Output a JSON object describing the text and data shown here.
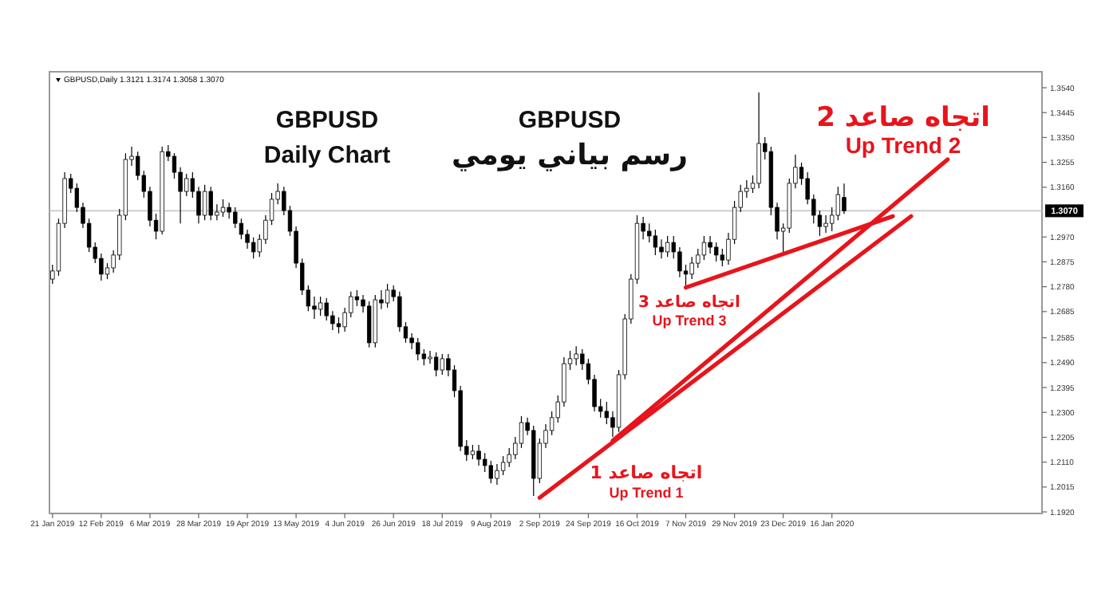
{
  "chart_data": {
    "type": "candlestick",
    "title": "GBPUSD,Daily 1.3121 1.3174 1.3058 1.3070",
    "annotations": [
      "GBPUSD",
      "Daily Chart",
      "GBPUSD",
      "رسم بياني يومي",
      "اتجاه صاعد 1",
      "Up Trend 1",
      {
        "text": "اتجاه صاعد 3",
        "y": 1.2777
      },
      "Up Trend 3",
      "اتجاه صاعد 2",
      "Up Trend 2"
    ],
    "categories": [
      "21 Jan 2019",
      null,
      null,
      null,
      null,
      null,
      null,
      null,
      "12 Feb 2019",
      null,
      null,
      null,
      null,
      null,
      null,
      null,
      "6 Mar 2019",
      null,
      null,
      null,
      null,
      null,
      null,
      null,
      "28 Mar 2019",
      null,
      null,
      null,
      null,
      null,
      null,
      null,
      "19 Apr 2019",
      null,
      null,
      null,
      null,
      null,
      null,
      null,
      "13 May 2019",
      null,
      null,
      null,
      null,
      null,
      null,
      null,
      "4 Jun 2019",
      null,
      null,
      null,
      null,
      null,
      null,
      null,
      "26 Jun 2019",
      null,
      null,
      null,
      null,
      null,
      null,
      null,
      "18 Jul 2019",
      null,
      null,
      null,
      null,
      null,
      null,
      null,
      "9 Aug 2019",
      null,
      null,
      null,
      null,
      null,
      null,
      null,
      "2 Sep 2019",
      null,
      null,
      null,
      null,
      null,
      null,
      null,
      "24 Sep 2019",
      null,
      null,
      null,
      null,
      null,
      null,
      null,
      "16 Oct 2019",
      null,
      null,
      null,
      null,
      null,
      null,
      null,
      "7 Nov 2019",
      null,
      null,
      null,
      null,
      null,
      null,
      null,
      "29 Nov 2019",
      null,
      null,
      null,
      null,
      null,
      null,
      null,
      "23 Dec 2019",
      null,
      null,
      null,
      null,
      null,
      null,
      null,
      "16 Jan 2020",
      null,
      null,
      null,
      null,
      null,
      null,
      null,
      null,
      null,
      null,
      null,
      null,
      null,
      null,
      null,
      null,
      null,
      null,
      null,
      null,
      null,
      null,
      null,
      null,
      null,
      null,
      null,
      null,
      null,
      null,
      null,
      null,
      null,
      null
    ],
    "color": "#000000",
    "ohlc": [
      [
        1.2809,
        1.2864,
        1.2791,
        1.284
      ],
      [
        1.284,
        1.304,
        1.2822,
        1.3022
      ],
      [
        1.3022,
        1.3217,
        1.3004,
        1.3193
      ],
      [
        1.3193,
        1.3211,
        1.3138,
        1.3156
      ],
      [
        1.3156,
        1.3175,
        1.3065,
        1.3083
      ],
      [
        1.3083,
        1.3101,
        1.3004,
        1.3022
      ],
      [
        1.3022,
        1.304,
        1.2913,
        1.2931
      ],
      [
        1.2931,
        1.2949,
        1.287,
        1.2888
      ],
      [
        1.2888,
        1.2907,
        1.2803,
        1.2828
      ],
      [
        1.2828,
        1.287,
        1.2809,
        1.2852
      ],
      [
        1.2852,
        1.2919,
        1.2834,
        1.2901
      ],
      [
        1.2901,
        1.3077,
        1.2882,
        1.3053
      ],
      [
        1.3053,
        1.329,
        1.3034,
        1.3266
      ],
      [
        1.3266,
        1.3315,
        1.3242,
        1.3278
      ],
      [
        1.3278,
        1.3296,
        1.3187,
        1.3205
      ],
      [
        1.3205,
        1.3223,
        1.312,
        1.3144
      ],
      [
        1.3144,
        1.3162,
        1.301,
        1.3034
      ],
      [
        1.3034,
        1.3059,
        1.2961,
        1.2992
      ],
      [
        1.2992,
        1.3315,
        1.298,
        1.3296
      ],
      [
        1.3296,
        1.3321,
        1.326,
        1.3278
      ],
      [
        1.3278,
        1.329,
        1.3193,
        1.3217
      ],
      [
        1.3217,
        1.3236,
        1.3022,
        1.3144
      ],
      [
        1.3144,
        1.3211,
        1.3126,
        1.3193
      ],
      [
        1.3193,
        1.3217,
        1.312,
        1.3144
      ],
      [
        1.3144,
        1.3162,
        1.3022,
        1.3053
      ],
      [
        1.3053,
        1.3169,
        1.3034,
        1.3144
      ],
      [
        1.3144,
        1.3162,
        1.3034,
        1.3053
      ],
      [
        1.3053,
        1.3095,
        1.3034,
        1.3065
      ],
      [
        1.3065,
        1.3114,
        1.3047,
        1.3083
      ],
      [
        1.3083,
        1.3101,
        1.304,
        1.3065
      ],
      [
        1.3065,
        1.3083,
        1.3004,
        1.3022
      ],
      [
        1.3022,
        1.304,
        1.2961,
        1.298
      ],
      [
        1.298,
        1.2998,
        1.2925,
        1.2949
      ],
      [
        1.2949,
        1.2968,
        1.2888,
        1.2913
      ],
      [
        1.2913,
        1.298,
        1.2894,
        1.2961
      ],
      [
        1.2961,
        1.3053,
        1.2943,
        1.3034
      ],
      [
        1.3034,
        1.3138,
        1.3016,
        1.3114
      ],
      [
        1.3114,
        1.3175,
        1.3095,
        1.3144
      ],
      [
        1.3144,
        1.3162,
        1.3053,
        1.3071
      ],
      [
        1.3071,
        1.3089,
        1.2974,
        1.2992
      ],
      [
        1.2992,
        1.301,
        1.2852,
        1.287
      ],
      [
        1.287,
        1.2888,
        1.2748,
        1.2767
      ],
      [
        1.2767,
        1.2785,
        1.2687,
        1.2706
      ],
      [
        1.2706,
        1.2742,
        1.2657,
        1.2694
      ],
      [
        1.2694,
        1.2742,
        1.2669,
        1.2718
      ],
      [
        1.2718,
        1.2736,
        1.2651,
        1.2669
      ],
      [
        1.2669,
        1.2687,
        1.2614,
        1.2639
      ],
      [
        1.2639,
        1.2663,
        1.2602,
        1.2627
      ],
      [
        1.2627,
        1.27,
        1.2608,
        1.2681
      ],
      [
        1.2681,
        1.2761,
        1.2663,
        1.2742
      ],
      [
        1.2742,
        1.2767,
        1.2706,
        1.273
      ],
      [
        1.273,
        1.2748,
        1.2681,
        1.2706
      ],
      [
        1.2706,
        1.2724,
        1.2548,
        1.2566
      ],
      [
        1.2566,
        1.2748,
        1.2548,
        1.273
      ],
      [
        1.273,
        1.2767,
        1.2694,
        1.2718
      ],
      [
        1.2718,
        1.2791,
        1.27,
        1.2767
      ],
      [
        1.2767,
        1.2785,
        1.2724,
        1.2742
      ],
      [
        1.2742,
        1.2761,
        1.2608,
        1.2627
      ],
      [
        1.2627,
        1.2645,
        1.2566,
        1.2584
      ],
      [
        1.2584,
        1.2602,
        1.2541,
        1.2566
      ],
      [
        1.2566,
        1.2584,
        1.2499,
        1.2523
      ],
      [
        1.2523,
        1.2541,
        1.248,
        1.2505
      ],
      [
        1.2505,
        1.2535,
        1.2486,
        1.2511
      ],
      [
        1.2511,
        1.2529,
        1.2438,
        1.2462
      ],
      [
        1.2462,
        1.2523,
        1.2444,
        1.2505
      ],
      [
        1.2505,
        1.2523,
        1.2438,
        1.2462
      ],
      [
        1.2462,
        1.248,
        1.2358,
        1.2383
      ],
      [
        1.2383,
        1.2401,
        1.2152,
        1.217
      ],
      [
        1.217,
        1.2194,
        1.2115,
        1.2139
      ],
      [
        1.2139,
        1.2176,
        1.2121,
        1.2152
      ],
      [
        1.2152,
        1.2176,
        1.2097,
        1.2121
      ],
      [
        1.2121,
        1.2145,
        1.2072,
        1.2097
      ],
      [
        1.2097,
        1.2115,
        1.203,
        1.2048
      ],
      [
        1.2048,
        1.2103,
        1.2024,
        1.2078
      ],
      [
        1.2078,
        1.2133,
        1.206,
        1.2109
      ],
      [
        1.2109,
        1.2164,
        1.2091,
        1.2139
      ],
      [
        1.2139,
        1.2206,
        1.2121,
        1.2182
      ],
      [
        1.2182,
        1.2286,
        1.2164,
        1.2261
      ],
      [
        1.2261,
        1.228,
        1.2213,
        1.2231
      ],
      [
        1.2231,
        1.2249,
        1.1981,
        1.2048
      ],
      [
        1.2048,
        1.22,
        1.203,
        1.2182
      ],
      [
        1.2182,
        1.2255,
        1.2164,
        1.2231
      ],
      [
        1.2231,
        1.2304,
        1.2213,
        1.228
      ],
      [
        1.228,
        1.2365,
        1.2261,
        1.234
      ],
      [
        1.234,
        1.2511,
        1.2322,
        1.2486
      ],
      [
        1.2486,
        1.2535,
        1.2462,
        1.2505
      ],
      [
        1.2505,
        1.2553,
        1.248,
        1.2523
      ],
      [
        1.2523,
        1.2541,
        1.2462,
        1.2486
      ],
      [
        1.2486,
        1.2505,
        1.2407,
        1.2426
      ],
      [
        1.2426,
        1.2444,
        1.2304,
        1.2322
      ],
      [
        1.2322,
        1.2352,
        1.228,
        1.2304
      ],
      [
        1.2304,
        1.234,
        1.2255,
        1.228
      ],
      [
        1.228,
        1.2304,
        1.2206,
        1.2243
      ],
      [
        1.2243,
        1.2462,
        1.2225,
        1.2444
      ],
      [
        1.2444,
        1.2675,
        1.2426,
        1.2657
      ],
      [
        1.2657,
        1.2828,
        1.2639,
        1.2809
      ],
      [
        1.2809,
        1.3053,
        1.2791,
        1.3022
      ],
      [
        1.3022,
        1.3047,
        1.2961,
        1.2992
      ],
      [
        1.2992,
        1.3022,
        1.2949,
        1.2974
      ],
      [
        1.2974,
        1.2998,
        1.2901,
        1.2931
      ],
      [
        1.2931,
        1.2961,
        1.2888,
        1.2913
      ],
      [
        1.2913,
        1.2974,
        1.2894,
        1.2949
      ],
      [
        1.2949,
        1.2974,
        1.2888,
        1.2913
      ],
      [
        1.2913,
        1.2931,
        1.2816,
        1.284
      ],
      [
        1.284,
        1.2864,
        1.2779,
        1.2828
      ],
      [
        1.2828,
        1.2894,
        1.2809,
        1.287
      ],
      [
        1.287,
        1.2925,
        1.2852,
        1.2901
      ],
      [
        1.2901,
        1.2974,
        1.2882,
        1.2949
      ],
      [
        1.2949,
        1.2974,
        1.2907,
        1.2931
      ],
      [
        1.2931,
        1.2949,
        1.2876,
        1.2901
      ],
      [
        1.2901,
        1.2925,
        1.2858,
        1.2882
      ],
      [
        1.2882,
        1.2986,
        1.2864,
        1.2961
      ],
      [
        1.2961,
        1.3108,
        1.2943,
        1.3083
      ],
      [
        1.3083,
        1.3169,
        1.3065,
        1.3144
      ],
      [
        1.3144,
        1.3187,
        1.312,
        1.3156
      ],
      [
        1.3156,
        1.3205,
        1.3138,
        1.3175
      ],
      [
        1.3175,
        1.3522,
        1.3156,
        1.3327
      ],
      [
        1.3327,
        1.3351,
        1.3266,
        1.3296
      ],
      [
        1.3296,
        1.3315,
        1.3053,
        1.3083
      ],
      [
        1.3083,
        1.3101,
        1.2961,
        1.2992
      ],
      [
        1.2992,
        1.3022,
        1.2901,
        1.3004
      ],
      [
        1.3004,
        1.3193,
        1.2986,
        1.3175
      ],
      [
        1.3175,
        1.3284,
        1.3156,
        1.3236
      ],
      [
        1.3236,
        1.3254,
        1.3169,
        1.3193
      ],
      [
        1.3193,
        1.3217,
        1.3095,
        1.3114
      ],
      [
        1.3114,
        1.3132,
        1.3022,
        1.3053
      ],
      [
        1.3053,
        1.3071,
        1.2974,
        1.301
      ],
      [
        1.301,
        1.3053,
        1.2986,
        1.3022
      ],
      [
        1.3022,
        1.3083,
        1.2992,
        1.3053
      ],
      [
        1.3053,
        1.3162,
        1.3034,
        1.3132
      ],
      [
        1.3121,
        1.3174,
        1.3058,
        1.307
      ],
      null,
      null,
      null,
      null,
      null,
      null,
      null,
      null,
      null,
      null,
      null,
      null,
      null,
      null,
      null,
      null,
      null,
      null,
      null,
      null,
      null,
      null,
      null,
      null,
      null,
      null,
      null,
      null,
      null,
      null,
      null,
      null
    ],
    "series": [
      {
        "type": "line",
        "color": "#e8141b",
        "values": [
          null,
          null,
          null,
          null,
          null,
          null,
          null,
          null,
          null,
          null,
          null,
          null,
          null,
          null,
          null,
          null,
          null,
          null,
          null,
          null,
          null,
          null,
          null,
          null,
          null,
          null,
          null,
          null,
          null,
          null,
          null,
          null,
          null,
          null,
          null,
          null,
          null,
          null,
          null,
          null,
          null,
          null,
          null,
          null,
          null,
          null,
          null,
          null,
          null,
          null,
          null,
          null,
          null,
          null,
          null,
          null,
          null,
          null,
          null,
          null,
          null,
          null,
          null,
          null,
          null,
          null,
          null,
          null,
          null,
          null,
          null,
          null,
          null,
          null,
          null,
          null,
          null,
          null,
          null,
          null,
          1.1974,
          null,
          null,
          null,
          null,
          null,
          null,
          null,
          null,
          null,
          null,
          null,
          null,
          null,
          null,
          null,
          null,
          null,
          null,
          null,
          null,
          null,
          null,
          null,
          null,
          null,
          null,
          null,
          null,
          null,
          null,
          null,
          null,
          null,
          null,
          null,
          null,
          null,
          null,
          null,
          null,
          null,
          null,
          null,
          null,
          null,
          null,
          null,
          null,
          null,
          null,
          null,
          null,
          null,
          null,
          null,
          null,
          null,
          null,
          null,
          null,
          1.3049,
          null,
          null,
          null,
          null,
          null,
          null,
          null,
          null,
          null,
          null,
          null,
          null,
          null,
          null,
          null,
          null,
          null,
          null,
          null,
          null,
          null
        ]
      },
      {
        "type": "line",
        "color": "#e8141b",
        "values": [
          null,
          null,
          null,
          null,
          null,
          null,
          null,
          null,
          null,
          null,
          null,
          null,
          null,
          null,
          null,
          null,
          null,
          null,
          null,
          null,
          null,
          null,
          null,
          null,
          null,
          null,
          null,
          null,
          null,
          null,
          null,
          null,
          null,
          null,
          null,
          null,
          null,
          null,
          null,
          null,
          null,
          null,
          null,
          null,
          null,
          null,
          null,
          null,
          null,
          null,
          null,
          null,
          null,
          null,
          null,
          null,
          null,
          null,
          null,
          null,
          null,
          null,
          null,
          null,
          null,
          null,
          null,
          null,
          null,
          null,
          null,
          null,
          null,
          null,
          null,
          null,
          null,
          null,
          null,
          null,
          null,
          null,
          null,
          null,
          null,
          null,
          null,
          null,
          null,
          null,
          null,
          null,
          1.2192,
          null,
          null,
          null,
          null,
          null,
          null,
          null,
          null,
          null,
          null,
          null,
          null,
          null,
          null,
          null,
          null,
          null,
          null,
          null,
          null,
          null,
          null,
          null,
          null,
          null,
          null,
          null,
          null,
          null,
          null,
          null,
          null,
          null,
          null,
          null,
          null,
          null,
          null,
          null,
          null,
          null,
          null,
          null,
          null,
          null,
          null,
          null,
          null,
          null,
          null,
          null,
          null,
          null,
          null,
          1.3266,
          null,
          null,
          null,
          null,
          null,
          null,
          null,
          null,
          null,
          null,
          null,
          null,
          null,
          null,
          null
        ]
      },
      {
        "type": "line",
        "color": "#e8141b",
        "values": [
          null,
          null,
          null,
          null,
          null,
          null,
          null,
          null,
          null,
          null,
          null,
          null,
          null,
          null,
          null,
          null,
          null,
          null,
          null,
          null,
          null,
          null,
          null,
          null,
          null,
          null,
          null,
          null,
          null,
          null,
          null,
          null,
          null,
          null,
          null,
          null,
          null,
          null,
          null,
          null,
          null,
          null,
          null,
          null,
          null,
          null,
          null,
          null,
          null,
          null,
          null,
          null,
          null,
          null,
          null,
          null,
          null,
          null,
          null,
          null,
          null,
          null,
          null,
          null,
          null,
          null,
          null,
          null,
          null,
          null,
          null,
          null,
          null,
          null,
          null,
          null,
          null,
          null,
          null,
          null,
          null,
          null,
          null,
          null,
          null,
          null,
          null,
          null,
          null,
          null,
          null,
          null,
          null,
          null,
          null,
          null,
          null,
          null,
          null,
          null,
          null,
          null,
          null,
          null,
          1.2777,
          null,
          null,
          null,
          null,
          null,
          null,
          null,
          null,
          null,
          null,
          null,
          null,
          null,
          null,
          null,
          null,
          null,
          null,
          null,
          null,
          null,
          null,
          null,
          null,
          null,
          null,
          null,
          null,
          null,
          null,
          null,
          null,
          null,
          1.3049,
          null,
          null,
          null,
          null,
          null,
          null,
          null,
          null,
          null,
          null,
          null,
          null,
          null,
          null,
          null,
          null,
          null,
          null,
          null,
          null,
          null,
          null,
          null,
          null
        ]
      }
    ],
    "ref_lines": [
      {
        "axis": "y",
        "value": 1.307,
        "label": "1.3070",
        "color": "#c8c8c8"
      }
    ],
    "ylim": [
      1.1914,
      1.3601
    ],
    "yticks": [
      {
        "value": 1.354,
        "label": "1.3540"
      },
      1.3445,
      {
        "value": 1.335,
        "label": "1.3350"
      },
      1.3255,
      {
        "value": 1.316,
        "label": "1.3160"
      },
      {
        "value": 1.297,
        "label": "1.2970"
      },
      1.2875,
      {
        "value": 1.278,
        "label": "1.2780"
      },
      1.2685,
      1.2585,
      {
        "value": 1.249,
        "label": "1.2490"
      },
      1.2395,
      {
        "value": 1.23,
        "label": "1.2300"
      },
      1.2205,
      {
        "value": 1.211,
        "label": "1.2110"
      },
      1.2015,
      {
        "value": 1.192,
        "label": "1.1920"
      }
    ]
  }
}
